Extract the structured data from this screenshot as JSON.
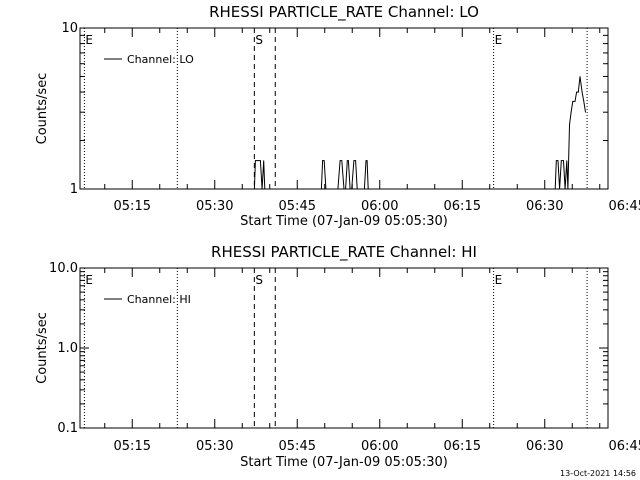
{
  "footer_timestamp": "13-Oct-2021 14:56",
  "chart_data": [
    {
      "type": "line",
      "title": "RHESSI PARTICLE_RATE Channel: LO",
      "xlabel": "Start Time (07-Jan-09 05:05:30)",
      "ylabel": "Counts/sec",
      "y_scale": "log",
      "ylim": [
        1,
        10
      ],
      "y_ticks": [
        1,
        10
      ],
      "y_tick_labels": [
        "1",
        "10"
      ],
      "xlim_minutes": [
        5.5,
        101.5
      ],
      "x_ticks": [
        {
          "value": 15,
          "label": "05:15"
        },
        {
          "value": 30,
          "label": "05:30"
        },
        {
          "value": 45,
          "label": "05:45"
        },
        {
          "value": 60,
          "label": "06:00"
        },
        {
          "value": 75,
          "label": "06:15"
        },
        {
          "value": 90,
          "label": "06:30"
        },
        {
          "value": 105,
          "label": "06:45"
        }
      ],
      "legend": {
        "position": "top-left",
        "entries": [
          "Channel: LO"
        ]
      },
      "markers": [
        {
          "label": "E",
          "t": 6.3,
          "style": "dotted"
        },
        {
          "label": "",
          "t": 23.2,
          "style": "dotted"
        },
        {
          "label": "S",
          "t": 37.2,
          "style": "dashed"
        },
        {
          "label": "",
          "t": 41.0,
          "style": "dashed"
        },
        {
          "label": "E",
          "t": 80.7,
          "style": "dotted"
        },
        {
          "label": "",
          "t": 97.7,
          "style": "dotted"
        }
      ],
      "series": [
        {
          "name": "Channel: LO",
          "x_minutes": [
            37.2,
            37.4,
            37.6,
            37.9,
            38.3,
            38.6,
            38.9,
            39.1,
            49.4,
            49.6,
            49.9,
            50.2,
            50.5,
            50.8,
            51.2,
            51.5,
            51.9,
            52.1,
            52.4,
            52.8,
            53.1,
            53.5,
            53.8,
            54.1,
            54.3,
            54.6,
            54.9,
            55.3,
            55.6,
            55.9,
            56.2,
            56.5,
            56.9,
            57.2,
            57.5,
            57.7,
            57.9,
            91.9,
            92.1,
            92.4,
            92.7,
            93.0,
            93.4,
            93.7,
            94.0,
            94.2,
            94.5,
            94.8,
            95.1,
            95.5,
            95.8,
            96.1,
            96.4,
            96.8,
            97.1,
            97.4
          ],
          "y": [
            1,
            1.5,
            1.5,
            1.5,
            1.5,
            1,
            1.5,
            1,
            1,
            1.5,
            1.5,
            1,
            1,
            1,
            1,
            1,
            1,
            1,
            1,
            1.5,
            1.5,
            1,
            1,
            1.5,
            1.5,
            1,
            1,
            1.5,
            1.5,
            1,
            1,
            1,
            1,
            1,
            1.5,
            1.5,
            1,
            1,
            1.5,
            1.5,
            1,
            1.5,
            1.5,
            1,
            1.5,
            1,
            2.5,
            3.0,
            3.5,
            3.5,
            4.0,
            4.0,
            5.0,
            4.0,
            3.5,
            3.0
          ]
        }
      ]
    },
    {
      "type": "line",
      "title": "RHESSI PARTICLE_RATE Channel: HI",
      "xlabel": "Start Time (07-Jan-09 05:05:30)",
      "ylabel": "Counts/sec",
      "y_scale": "log",
      "ylim": [
        0.1,
        10
      ],
      "y_ticks": [
        0.1,
        1,
        10
      ],
      "y_tick_labels": [
        "0.1",
        "1.0",
        "10.0"
      ],
      "xlim_minutes": [
        5.5,
        101.5
      ],
      "x_ticks": [
        {
          "value": 15,
          "label": "05:15"
        },
        {
          "value": 30,
          "label": "05:30"
        },
        {
          "value": 45,
          "label": "05:45"
        },
        {
          "value": 60,
          "label": "06:00"
        },
        {
          "value": 75,
          "label": "06:15"
        },
        {
          "value": 90,
          "label": "06:30"
        },
        {
          "value": 105,
          "label": "06:45"
        }
      ],
      "legend": {
        "position": "top-left",
        "entries": [
          "Channel: HI"
        ]
      },
      "markers": [
        {
          "label": "E",
          "t": 6.3,
          "style": "dotted"
        },
        {
          "label": "",
          "t": 23.2,
          "style": "dotted"
        },
        {
          "label": "S",
          "t": 37.2,
          "style": "dashed"
        },
        {
          "label": "",
          "t": 41.0,
          "style": "dashed"
        },
        {
          "label": "E",
          "t": 80.7,
          "style": "dotted"
        },
        {
          "label": "",
          "t": 97.7,
          "style": "dotted"
        }
      ],
      "series": [
        {
          "name": "Channel: HI",
          "x_minutes": [],
          "y": []
        }
      ]
    }
  ]
}
